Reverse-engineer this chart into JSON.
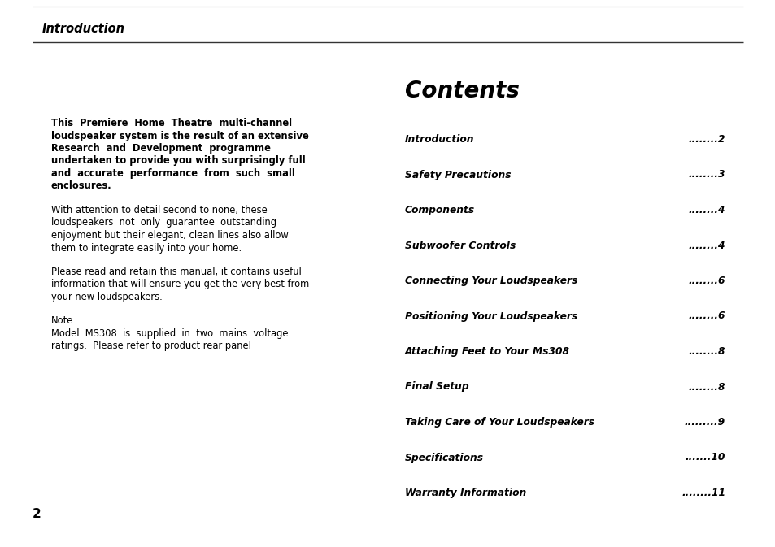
{
  "bg_color": "#ffffff",
  "text_color": "#000000",
  "page_header": "Introduction",
  "page_number": "2",
  "bold_para_lines": [
    "This  Premiere  Home  Theatre  multi-channel",
    "loudspeaker system is the result of an extensive",
    "Research  and  Development  programme",
    "undertaken to provide you with surprisingly full",
    "and  accurate  performance  from  such  small",
    "enclosures."
  ],
  "para2_lines": [
    "With attention to detail second to none, these",
    "loudspeakers  not  only  guarantee  outstanding",
    "enjoyment but their elegant, clean lines also allow",
    "them to integrate easily into your home."
  ],
  "para3_lines": [
    "Please read and retain this manual, it contains useful",
    "information that will ensure you get the very best from",
    "your new loudspeakers."
  ],
  "note_lines": [
    "Note:",
    "Model  MS308  is  supplied  in  two  mains  voltage",
    "ratings.  Please refer to product rear panel"
  ],
  "contents_title": "Contents",
  "contents_items": [
    {
      "label": "Introduction",
      "dots": "........",
      "page": "2"
    },
    {
      "label": "Safety Precautions",
      "dots": "........",
      "page": "3"
    },
    {
      "label": "Components",
      "dots": "........",
      "page": "4"
    },
    {
      "label": "Subwoofer Controls",
      "dots": "........",
      "page": "4"
    },
    {
      "label": "Connecting Your Loudspeakers",
      "dots": "........",
      "page": "6"
    },
    {
      "label": "Positioning Your Loudspeakers",
      "dots": "........",
      "page": "6"
    },
    {
      "label": "Attaching Feet to Your Ms308",
      "dots": "........",
      "page": "8"
    },
    {
      "label": "Final Setup",
      "dots": "........",
      "page": "8"
    },
    {
      "label": "Taking Care of Your Loudspeakers",
      "dots": ".........",
      "page": "9"
    },
    {
      "label": "Specifications",
      "dots": ".......",
      "page": "10"
    },
    {
      "label": "Warranty Information",
      "dots": "........",
      "page": "11"
    }
  ]
}
